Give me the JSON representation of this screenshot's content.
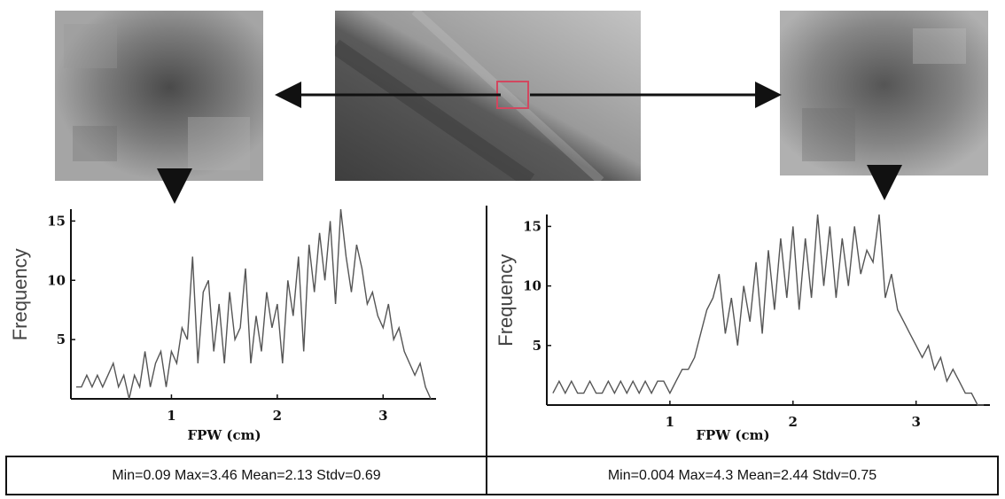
{
  "colors": {
    "line": "#555555",
    "axis": "#111111",
    "roi_box": "#d2475f",
    "arrow": "#111111"
  },
  "images": [
    {
      "name": "left-zoom",
      "tone": "#8f8f8f"
    },
    {
      "name": "center-overview",
      "tone": "#8a8a8a"
    },
    {
      "name": "right-zoom",
      "tone": "#9a9a9a"
    }
  ],
  "chart_data": [
    {
      "type": "line",
      "xlabel": "FPW (cm)",
      "ylabel": "Frequency",
      "xlim": [
        0.05,
        3.5
      ],
      "ylim": [
        0,
        16
      ],
      "xticks": [
        1,
        2,
        3
      ],
      "yticks": [
        5,
        10,
        15
      ],
      "grid": false,
      "x": [
        0.1,
        0.15,
        0.2,
        0.25,
        0.3,
        0.35,
        0.4,
        0.45,
        0.5,
        0.55,
        0.6,
        0.65,
        0.7,
        0.75,
        0.8,
        0.85,
        0.9,
        0.95,
        1.0,
        1.05,
        1.1,
        1.15,
        1.2,
        1.25,
        1.3,
        1.35,
        1.4,
        1.45,
        1.5,
        1.55,
        1.6,
        1.65,
        1.7,
        1.75,
        1.8,
        1.85,
        1.9,
        1.95,
        2.0,
        2.05,
        2.1,
        2.15,
        2.2,
        2.25,
        2.3,
        2.35,
        2.4,
        2.45,
        2.5,
        2.55,
        2.6,
        2.65,
        2.7,
        2.75,
        2.8,
        2.85,
        2.9,
        2.95,
        3.0,
        3.05,
        3.1,
        3.15,
        3.2,
        3.25,
        3.3,
        3.35,
        3.4,
        3.45
      ],
      "values": [
        1,
        1,
        2,
        1,
        2,
        1,
        2,
        3,
        1,
        2,
        0,
        2,
        1,
        4,
        1,
        3,
        4,
        1,
        4,
        3,
        6,
        5,
        12,
        3,
        9,
        10,
        4,
        8,
        3,
        9,
        5,
        6,
        11,
        3,
        7,
        4,
        9,
        6,
        8,
        3,
        10,
        7,
        12,
        4,
        13,
        9,
        14,
        10,
        15,
        8,
        16,
        12,
        9,
        13,
        11,
        8,
        9,
        7,
        6,
        8,
        5,
        6,
        4,
        3,
        2,
        3,
        1,
        0
      ],
      "stats": "Min=0.09 Max=3.46 Mean=2.13 Stdv=0.69"
    },
    {
      "type": "line",
      "xlabel": "FPW (cm)",
      "ylabel": "Frequency",
      "xlim": [
        0.0,
        3.6
      ],
      "ylim": [
        0,
        16
      ],
      "xticks": [
        1,
        2,
        3
      ],
      "yticks": [
        5,
        10,
        15
      ],
      "grid": false,
      "x": [
        0.05,
        0.1,
        0.15,
        0.2,
        0.25,
        0.3,
        0.35,
        0.4,
        0.45,
        0.5,
        0.55,
        0.6,
        0.65,
        0.7,
        0.75,
        0.8,
        0.85,
        0.9,
        0.95,
        1.0,
        1.05,
        1.1,
        1.15,
        1.2,
        1.25,
        1.3,
        1.35,
        1.4,
        1.45,
        1.5,
        1.55,
        1.6,
        1.65,
        1.7,
        1.75,
        1.8,
        1.85,
        1.9,
        1.95,
        2.0,
        2.05,
        2.1,
        2.15,
        2.2,
        2.25,
        2.3,
        2.35,
        2.4,
        2.45,
        2.5,
        2.55,
        2.6,
        2.65,
        2.7,
        2.75,
        2.8,
        2.85,
        2.9,
        2.95,
        3.0,
        3.05,
        3.1,
        3.15,
        3.2,
        3.25,
        3.3,
        3.35,
        3.4,
        3.45,
        3.5,
        3.55
      ],
      "values": [
        1,
        2,
        1,
        2,
        1,
        1,
        2,
        1,
        1,
        2,
        1,
        2,
        1,
        2,
        1,
        2,
        1,
        2,
        2,
        1,
        2,
        3,
        3,
        4,
        6,
        8,
        9,
        11,
        6,
        9,
        5,
        10,
        7,
        12,
        6,
        13,
        8,
        14,
        9,
        15,
        8,
        14,
        9,
        16,
        10,
        15,
        9,
        14,
        10,
        15,
        11,
        13,
        12,
        16,
        9,
        11,
        8,
        7,
        6,
        5,
        4,
        5,
        3,
        4,
        2,
        3,
        2,
        1,
        1,
        0,
        0
      ],
      "stats": "Min=0.004  Max=4.3   Mean=2.44  Stdv=0.75"
    }
  ]
}
